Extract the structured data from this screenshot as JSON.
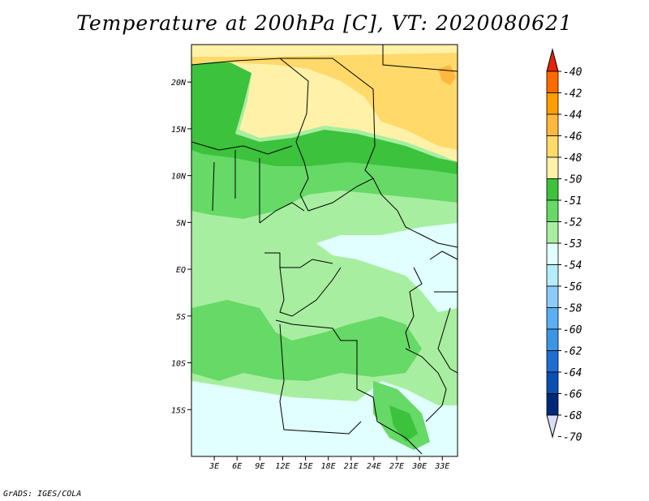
{
  "title": "Temperature at 200hPa [C], VT: 2020080621",
  "credit": "GrADS: IGES/COLA",
  "map": {
    "lon_range": [
      0,
      35
    ],
    "lat_range": [
      -20,
      24
    ],
    "x_ticks": [
      "3E",
      "6E",
      "9E",
      "12E",
      "15E",
      "18E",
      "21E",
      "24E",
      "27E",
      "30E",
      "33E"
    ],
    "x_tick_values": [
      3,
      6,
      9,
      12,
      15,
      18,
      21,
      24,
      27,
      30,
      33
    ],
    "y_ticks": [
      "20N",
      "15N",
      "10N",
      "5N",
      "EQ",
      "5S",
      "10S",
      "15S"
    ],
    "y_tick_values": [
      20,
      15,
      10,
      5,
      0,
      -5,
      -10,
      -15
    ]
  },
  "legend": {
    "labels": [
      "-40",
      "-42",
      "-44",
      "-46",
      "-48",
      "-50",
      "-51",
      "-52",
      "-53",
      "-54",
      "-56",
      "-58",
      "-60",
      "-62",
      "-64",
      "-66",
      "-68",
      "-70"
    ],
    "colors": [
      "#e8220c",
      "#ff6a00",
      "#ff9e00",
      "#ffb83d",
      "#ffd96a",
      "#fff2a8",
      "#3cc23c",
      "#66d966",
      "#a8eea0",
      "#e0fffe",
      "#b4eefc",
      "#8cccfb",
      "#5ab0f5",
      "#3c96e6",
      "#1e6ed2",
      "#0a50b4",
      "#00287a",
      "#dcdcf5"
    ]
  }
}
